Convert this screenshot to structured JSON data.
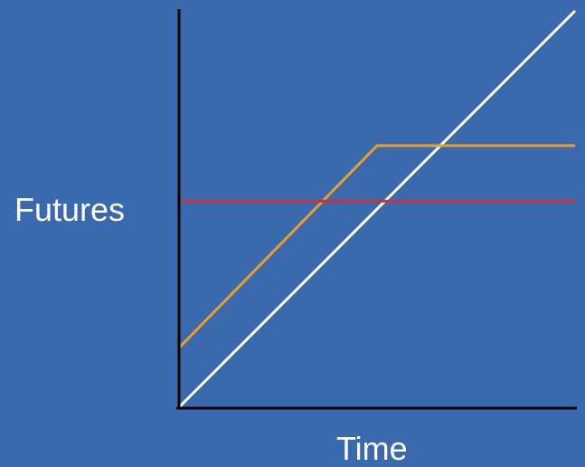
{
  "background_color": "#3a69ae",
  "chart_data": {
    "type": "line",
    "xlabel": "Time",
    "ylabel": "Futures",
    "title": "",
    "xlim": [
      0,
      100
    ],
    "ylim": [
      0,
      100
    ],
    "grid": false,
    "legend": "none",
    "tick_labels": false,
    "series": [
      {
        "color": "#ffffff",
        "points": [
          [
            0,
            0
          ],
          [
            100,
            100
          ]
        ]
      },
      {
        "color": "#e6a12a",
        "points": [
          [
            0,
            15
          ],
          [
            50,
            66
          ],
          [
            100,
            66
          ]
        ]
      },
      {
        "color": "#c8323c",
        "points": [
          [
            0,
            52
          ],
          [
            100,
            52
          ]
        ]
      }
    ]
  }
}
